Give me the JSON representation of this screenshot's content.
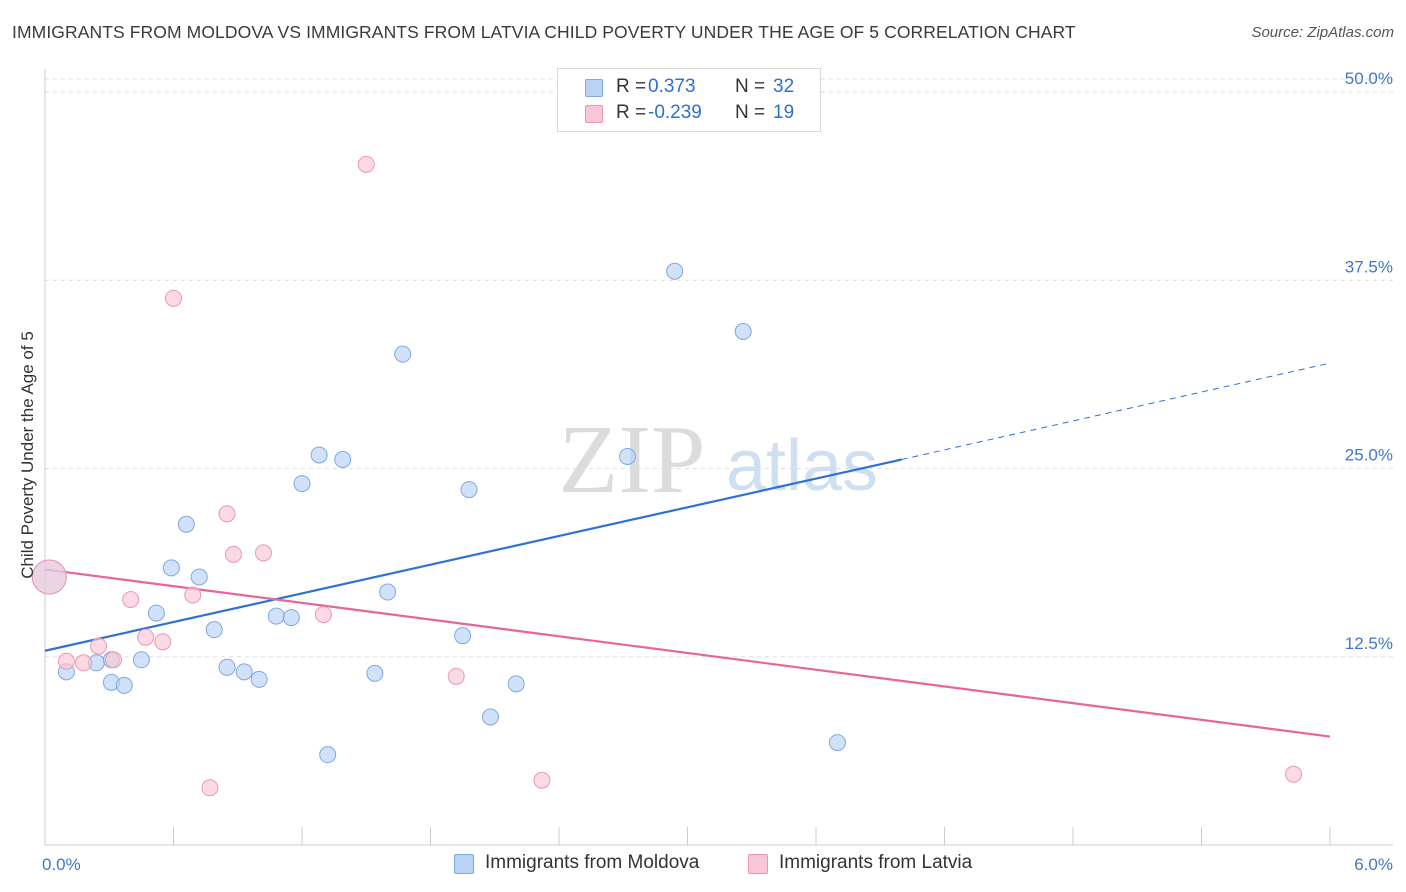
{
  "title": "IMMIGRANTS FROM MOLDOVA VS IMMIGRANTS FROM LATVIA CHILD POVERTY UNDER THE AGE OF 5 CORRELATION CHART",
  "source": "Source: ZipAtlas.com",
  "watermark": {
    "zip": "ZIP",
    "atlas": "atlas"
  },
  "legend": {
    "r_label": "R =",
    "n_label": "N =",
    "rows": [
      {
        "r_value": "0.373",
        "n_value": "32"
      },
      {
        "r_value": "-0.239",
        "n_value": "19"
      }
    ]
  },
  "colors": {
    "moldova_fill": "#b9d3f4",
    "moldova_stroke": "#7ea9e0",
    "moldova_line": "#2e72d2",
    "latvia_fill": "#f9c6d5",
    "latvia_stroke": "#ec97b1",
    "latvia_line": "#e5669a",
    "tick_label": "#3e78c9",
    "grid": "#dddddd",
    "axis": "#cccccc"
  },
  "chart_data": {
    "type": "scatter",
    "title": "IMMIGRANTS FROM MOLDOVA VS IMMIGRANTS FROM LATVIA CHILD POVERTY UNDER THE AGE OF 5 CORRELATION CHART",
    "xlabel": "",
    "ylabel": "Child Poverty Under the Age of 5",
    "xlim": [
      0,
      6
    ],
    "ylim": [
      0,
      51
    ],
    "x_tick_labels": [
      {
        "value": 0,
        "label": "0.0%"
      },
      {
        "value": 6,
        "label": "6.0%"
      }
    ],
    "y_ticks": [
      {
        "value": 12.5,
        "label": "12.5%"
      },
      {
        "value": 25,
        "label": "25.0%"
      },
      {
        "value": 37.5,
        "label": "37.5%"
      },
      {
        "value": 50,
        "label": "50.0%"
      }
    ],
    "x_minor_ticks": [
      0.6,
      1.2,
      1.8,
      2.4,
      3.0,
      3.6,
      4.2,
      4.8,
      5.4,
      6.0
    ],
    "legend_position": "top-center",
    "series": [
      {
        "name": "Immigrants from Moldova",
        "color": "#b9d3f4",
        "points": [
          {
            "x": 0.02,
            "y": 17.8,
            "big": true
          },
          {
            "x": 0.1,
            "y": 11.5
          },
          {
            "x": 0.24,
            "y": 12.1
          },
          {
            "x": 0.31,
            "y": 12.3
          },
          {
            "x": 0.31,
            "y": 10.8
          },
          {
            "x": 0.37,
            "y": 10.6
          },
          {
            "x": 0.45,
            "y": 12.3
          },
          {
            "x": 0.52,
            "y": 15.4
          },
          {
            "x": 0.59,
            "y": 18.4
          },
          {
            "x": 0.66,
            "y": 21.3
          },
          {
            "x": 0.72,
            "y": 17.8
          },
          {
            "x": 0.79,
            "y": 14.3
          },
          {
            "x": 0.85,
            "y": 11.8
          },
          {
            "x": 0.93,
            "y": 11.5
          },
          {
            "x": 1.0,
            "y": 11.0
          },
          {
            "x": 1.08,
            "y": 15.2
          },
          {
            "x": 1.15,
            "y": 15.1
          },
          {
            "x": 1.2,
            "y": 24.0
          },
          {
            "x": 1.28,
            "y": 25.9
          },
          {
            "x": 1.32,
            "y": 6.0
          },
          {
            "x": 1.39,
            "y": 25.6
          },
          {
            "x": 1.54,
            "y": 11.4
          },
          {
            "x": 1.6,
            "y": 16.8
          },
          {
            "x": 1.67,
            "y": 32.6
          },
          {
            "x": 1.95,
            "y": 13.9
          },
          {
            "x": 1.98,
            "y": 23.6
          },
          {
            "x": 2.08,
            "y": 8.5
          },
          {
            "x": 2.2,
            "y": 10.7
          },
          {
            "x": 2.72,
            "y": 25.8
          },
          {
            "x": 2.94,
            "y": 38.1
          },
          {
            "x": 3.26,
            "y": 34.1
          },
          {
            "x": 3.7,
            "y": 6.8
          }
        ],
        "trend": {
          "x1": 0,
          "y1": 12.9,
          "x2": 4.0,
          "y2": 25.6,
          "dash_to_x": 6.0,
          "dash_to_y": 32.0
        }
      },
      {
        "name": "Immigrants from Latvia",
        "color": "#f9c6d5",
        "points": [
          {
            "x": 0.02,
            "y": 17.8,
            "big": true
          },
          {
            "x": 0.1,
            "y": 12.2
          },
          {
            "x": 0.18,
            "y": 12.1
          },
          {
            "x": 0.25,
            "y": 13.2
          },
          {
            "x": 0.32,
            "y": 12.3
          },
          {
            "x": 0.4,
            "y": 16.3
          },
          {
            "x": 0.47,
            "y": 13.8
          },
          {
            "x": 0.55,
            "y": 13.5
          },
          {
            "x": 0.6,
            "y": 36.3
          },
          {
            "x": 0.69,
            "y": 16.6
          },
          {
            "x": 0.77,
            "y": 3.8
          },
          {
            "x": 0.85,
            "y": 22.0
          },
          {
            "x": 0.88,
            "y": 19.3
          },
          {
            "x": 1.02,
            "y": 19.4
          },
          {
            "x": 1.3,
            "y": 15.3
          },
          {
            "x": 1.5,
            "y": 45.2
          },
          {
            "x": 1.92,
            "y": 11.2
          },
          {
            "x": 2.32,
            "y": 4.3
          },
          {
            "x": 5.83,
            "y": 4.7
          }
        ],
        "trend": {
          "x1": 0,
          "y1": 18.3,
          "x2": 6.0,
          "y2": 7.2
        }
      }
    ]
  }
}
